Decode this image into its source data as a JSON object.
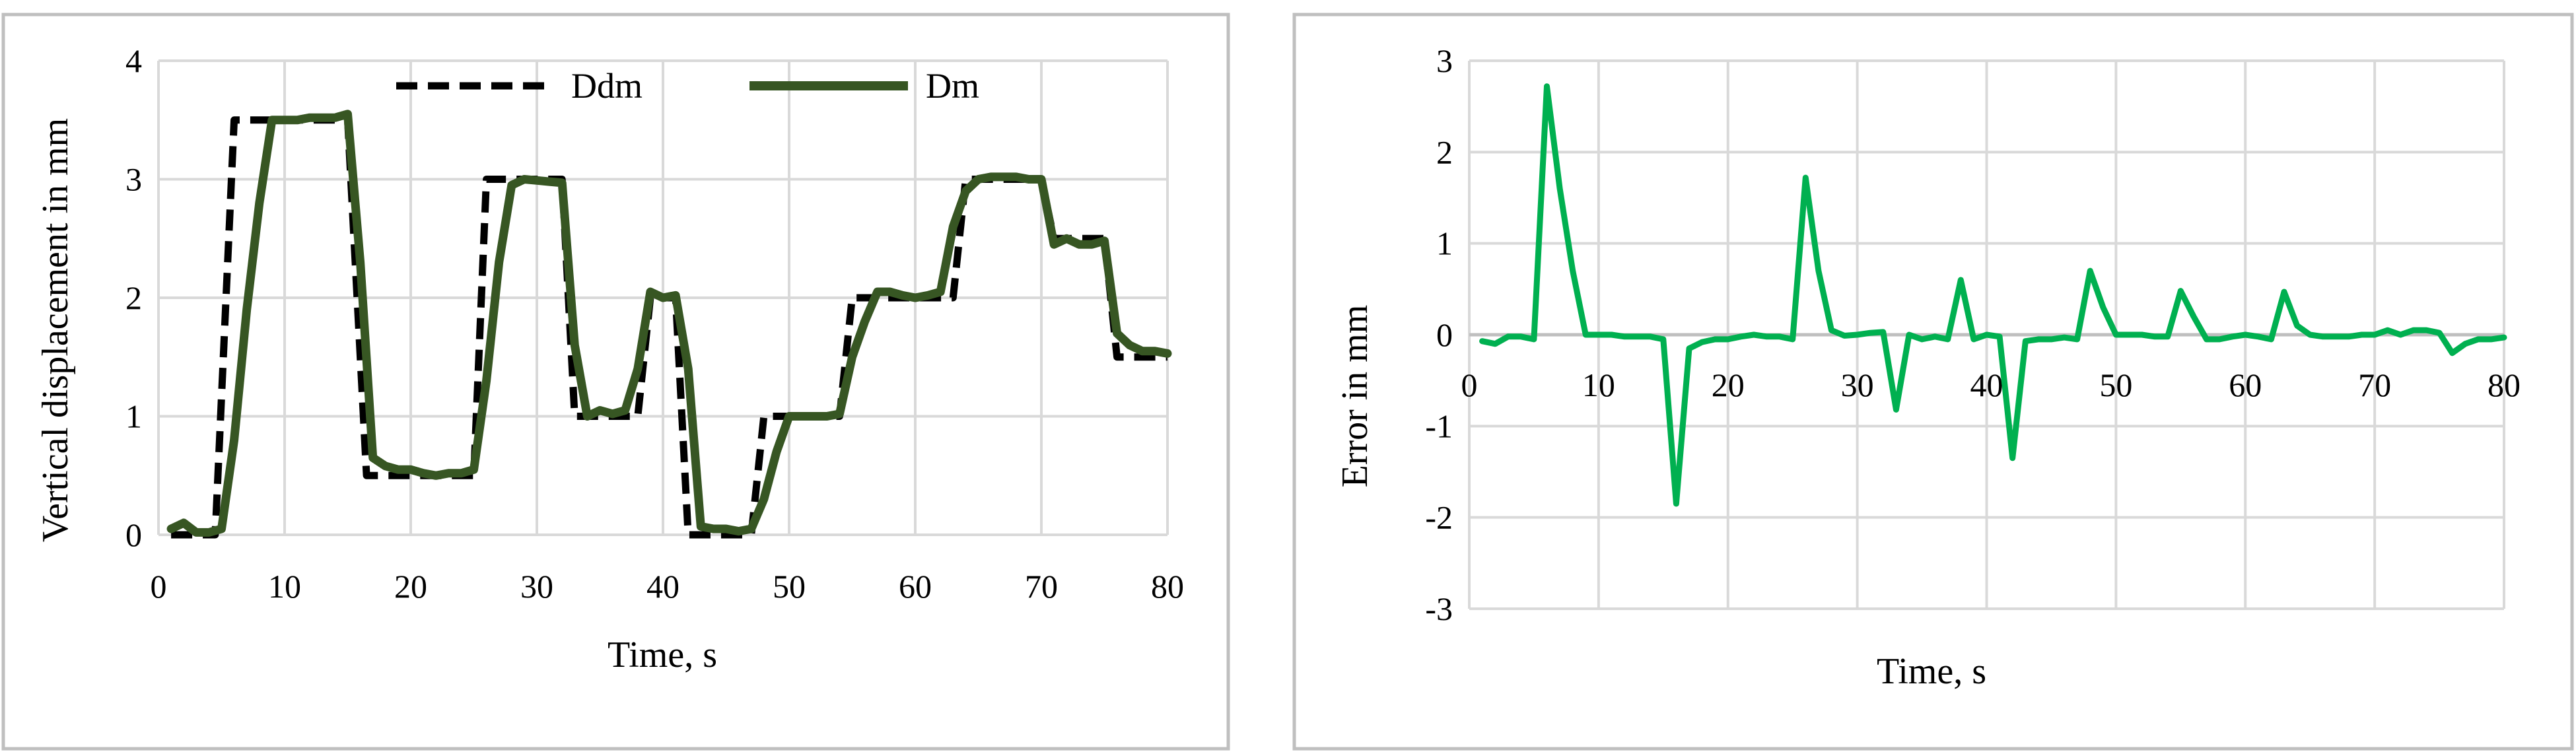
{
  "chart_data": [
    {
      "type": "line",
      "title": "",
      "xlabel": "Time, s",
      "ylabel": "Vertical displacement in mm",
      "xlim": [
        0,
        80
      ],
      "ylim": [
        0,
        4
      ],
      "xticks": [
        0,
        10,
        20,
        30,
        40,
        50,
        60,
        70,
        80
      ],
      "yticks": [
        0,
        1,
        2,
        3,
        4
      ],
      "grid": true,
      "legend_position": "top",
      "series": [
        {
          "name": "Ddm",
          "style": "dashed",
          "color": "#000000",
          "x": [
            1,
            4.5,
            6,
            15,
            16.5,
            25,
            26,
            32,
            33,
            38,
            39,
            41,
            42,
            47,
            48,
            54,
            55,
            63,
            64,
            70,
            71,
            75,
            76,
            80
          ],
          "y": [
            0,
            0,
            3.5,
            3.5,
            0.5,
            0.5,
            3,
            3,
            1,
            1,
            2,
            2,
            0,
            0,
            1,
            1,
            2,
            2,
            3,
            3,
            2.5,
            2.5,
            1.5,
            1.5
          ]
        },
        {
          "name": "Dm",
          "style": "solid",
          "color": "#375623",
          "x": [
            1,
            2,
            3,
            4,
            5,
            6,
            7,
            8,
            9,
            10,
            11,
            12,
            13,
            14,
            15,
            16,
            17,
            18,
            19,
            20,
            21,
            22,
            23,
            24,
            25,
            26,
            27,
            28,
            29,
            30,
            31,
            32,
            33,
            34,
            35,
            36,
            37,
            38,
            39,
            40,
            41,
            42,
            43,
            44,
            45,
            46,
            47,
            48,
            49,
            50,
            51,
            52,
            53,
            54,
            55,
            56,
            57,
            58,
            59,
            60,
            61,
            62,
            63,
            64,
            65,
            66,
            67,
            68,
            69,
            70,
            71,
            72,
            73,
            74,
            75,
            76,
            77,
            78,
            79,
            80
          ],
          "y": [
            0.05,
            0.1,
            0.02,
            0.02,
            0.05,
            0.8,
            1.9,
            2.8,
            3.5,
            3.5,
            3.5,
            3.52,
            3.52,
            3.52,
            3.55,
            2.3,
            0.65,
            0.58,
            0.55,
            0.55,
            0.52,
            0.5,
            0.52,
            0.52,
            0.55,
            1.3,
            2.3,
            2.95,
            3.0,
            2.99,
            2.98,
            2.97,
            1.6,
            1.0,
            1.05,
            1.02,
            1.05,
            1.4,
            2.05,
            2.0,
            2.02,
            1.4,
            0.07,
            0.05,
            0.05,
            0.03,
            0.05,
            0.3,
            0.7,
            1.0,
            1.0,
            1.0,
            1.0,
            1.02,
            1.5,
            1.8,
            2.05,
            2.05,
            2.02,
            2.0,
            2.02,
            2.05,
            2.6,
            2.9,
            3.0,
            3.02,
            3.02,
            3.02,
            3.0,
            3.0,
            2.45,
            2.5,
            2.45,
            2.45,
            2.48,
            1.7,
            1.6,
            1.55,
            1.55,
            1.53
          ]
        }
      ]
    },
    {
      "type": "line",
      "title": "",
      "xlabel": "Time, s",
      "ylabel": "Error in mm",
      "xlim": [
        0,
        80
      ],
      "ylim": [
        -3,
        3
      ],
      "xticks": [
        0,
        10,
        20,
        30,
        40,
        50,
        60,
        70,
        80
      ],
      "yticks": [
        3,
        2,
        1,
        0,
        -1,
        -2,
        -3
      ],
      "grid": true,
      "series": [
        {
          "name": "Error",
          "color": "#00b050",
          "x": [
            1,
            2,
            3,
            4,
            5,
            6,
            7,
            8,
            9,
            10,
            11,
            12,
            13,
            14,
            15,
            16,
            17,
            18,
            19,
            20,
            21,
            22,
            23,
            24,
            25,
            26,
            27,
            28,
            29,
            30,
            31,
            32,
            33,
            34,
            35,
            36,
            37,
            38,
            39,
            40,
            41,
            42,
            43,
            44,
            45,
            46,
            47,
            48,
            49,
            50,
            51,
            52,
            53,
            54,
            55,
            56,
            57,
            58,
            59,
            60,
            61,
            62,
            63,
            64,
            65,
            66,
            67,
            68,
            69,
            70,
            71,
            72,
            73,
            74,
            75,
            76,
            77,
            78,
            79,
            80
          ],
          "y": [
            -0.07,
            -0.1,
            -0.02,
            -0.02,
            -0.05,
            2.72,
            1.6,
            0.7,
            0.0,
            0.0,
            0.0,
            -0.02,
            -0.02,
            -0.02,
            -0.05,
            -1.85,
            -0.15,
            -0.08,
            -0.05,
            -0.05,
            -0.02,
            0.0,
            -0.02,
            -0.02,
            -0.05,
            1.72,
            0.7,
            0.05,
            -0.01,
            0.0,
            0.02,
            0.03,
            -0.82,
            0.0,
            -0.05,
            -0.02,
            -0.05,
            0.6,
            -0.05,
            0.0,
            -0.02,
            -1.35,
            -0.07,
            -0.05,
            -0.05,
            -0.03,
            -0.05,
            0.7,
            0.3,
            0.0,
            0.0,
            0.0,
            -0.02,
            -0.02,
            0.48,
            0.2,
            -0.05,
            -0.05,
            -0.02,
            0.0,
            -0.02,
            -0.05,
            0.47,
            0.1,
            0.0,
            -0.02,
            -0.02,
            -0.02,
            0.0,
            0.0,
            0.05,
            -0.0,
            0.05,
            0.05,
            0.02,
            -0.2,
            -0.1,
            -0.05,
            -0.05,
            -0.03
          ]
        }
      ]
    }
  ]
}
